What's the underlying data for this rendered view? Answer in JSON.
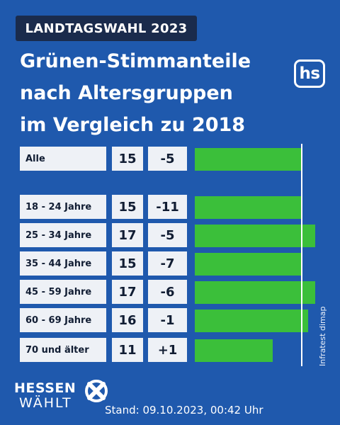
{
  "kicker": "LANDTAGSWAHL 2023",
  "title_lines": [
    "Grünen-Stimmanteile",
    "nach Altersgruppen",
    "im Vergleich zu 2018"
  ],
  "logo_text": "hs",
  "source": "Infratest dimap",
  "brand": {
    "line1": "HESSEN",
    "line2": "WÄHLT"
  },
  "footer": "Stand: 09.10.2023, 00:42 Uhr",
  "colors": {
    "background": "#1f59ad",
    "bar": "#3bbf3a",
    "cell": "#eef1f6",
    "kicker_bg": "#1a2b4c"
  },
  "chart_data": {
    "type": "bar",
    "orientation": "horizontal",
    "categories": [
      "Alle",
      "18 - 24 Jahre",
      "25 - 34 Jahre",
      "35 - 44 Jahre",
      "45 - 59 Jahre",
      "60 - 69 Jahre",
      "70 und älter"
    ],
    "series": [
      {
        "values": [
          15,
          15,
          17,
          15,
          17,
          16,
          11
        ]
      }
    ],
    "diff_labels": [
      "-5",
      "-11",
      "-5",
      "-7",
      "-6",
      "-1",
      "+1"
    ],
    "reference_value": 15,
    "xlim": [
      0,
      17
    ]
  }
}
